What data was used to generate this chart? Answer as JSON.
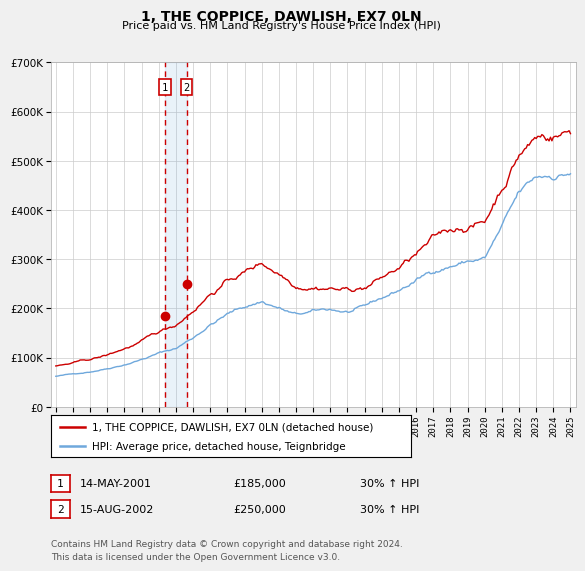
{
  "title": "1, THE COPPICE, DAWLISH, EX7 0LN",
  "subtitle": "Price paid vs. HM Land Registry's House Price Index (HPI)",
  "legend_line1": "1, THE COPPICE, DAWLISH, EX7 0LN (detached house)",
  "legend_line2": "HPI: Average price, detached house, Teignbridge",
  "footnote": "Contains HM Land Registry data © Crown copyright and database right 2024.\nThis data is licensed under the Open Government Licence v3.0.",
  "transaction1_date": "14-MAY-2001",
  "transaction1_price": "£185,000",
  "transaction1_hpi": "30% ↑ HPI",
  "transaction2_date": "15-AUG-2002",
  "transaction2_price": "£250,000",
  "transaction2_hpi": "30% ↑ HPI",
  "marker1_x": 2001.37,
  "marker1_y": 185000,
  "marker2_x": 2002.62,
  "marker2_y": 250000,
  "vline1_x": 2001.37,
  "vline2_x": 2002.62,
  "hpi_color": "#6fa8dc",
  "price_color": "#cc0000",
  "background_color": "#f0f0f0",
  "plot_bg_color": "#ffffff",
  "ylim": [
    0,
    700000
  ],
  "xlim_start": 1994.7,
  "xlim_end": 2025.3
}
